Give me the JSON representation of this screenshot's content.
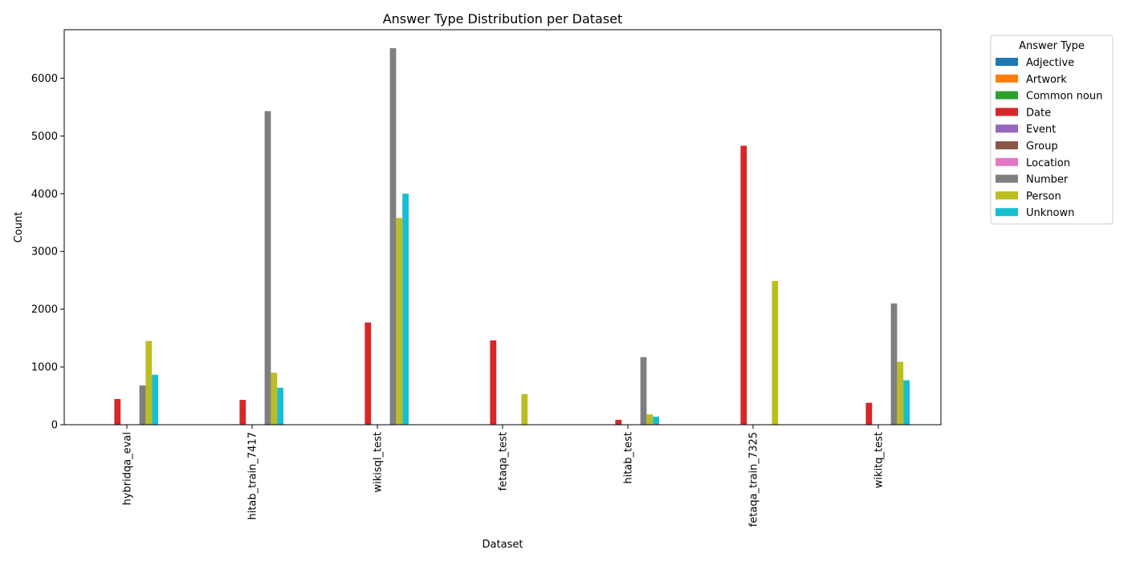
{
  "chart_data": {
    "type": "bar",
    "title": "Answer Type Distribution per Dataset",
    "xlabel": "Dataset",
    "ylabel": "Count",
    "ylim": [
      0,
      6840
    ],
    "yticks": [
      0,
      1000,
      2000,
      3000,
      4000,
      5000,
      6000
    ],
    "grid": false,
    "legend_title": "Answer Type",
    "legend_position": "outside-top-right",
    "categories": [
      "hybridqa_eval",
      "hitab_train_7417",
      "wikisql_test",
      "fetaqa_test",
      "hitab_test",
      "fetaqa_train_7325",
      "wikitq_test"
    ],
    "series": [
      {
        "name": "Adjective",
        "color": "#1f77b4",
        "values": [
          0,
          0,
          0,
          0,
          0,
          0,
          0
        ]
      },
      {
        "name": "Artwork",
        "color": "#ff7f0e",
        "values": [
          0,
          0,
          0,
          0,
          0,
          0,
          0
        ]
      },
      {
        "name": "Common noun",
        "color": "#2ca02c",
        "values": [
          0,
          0,
          0,
          0,
          0,
          0,
          0
        ]
      },
      {
        "name": "Date",
        "color": "#d62728",
        "values": [
          445,
          430,
          1770,
          1460,
          85,
          4830,
          380
        ]
      },
      {
        "name": "Event",
        "color": "#9467bd",
        "values": [
          0,
          0,
          0,
          0,
          0,
          0,
          0
        ]
      },
      {
        "name": "Group",
        "color": "#8c564b",
        "values": [
          0,
          0,
          0,
          0,
          0,
          0,
          0
        ]
      },
      {
        "name": "Location",
        "color": "#e377c2",
        "values": [
          0,
          0,
          0,
          0,
          0,
          0,
          0
        ]
      },
      {
        "name": "Number",
        "color": "#7f7f7f",
        "values": [
          680,
          5430,
          6520,
          0,
          1170,
          0,
          2100
        ]
      },
      {
        "name": "Person",
        "color": "#bcbd22",
        "values": [
          1450,
          900,
          3580,
          530,
          180,
          2490,
          1090
        ]
      },
      {
        "name": "Unknown",
        "color": "#17becf",
        "values": [
          865,
          640,
          4000,
          0,
          140,
          0,
          770
        ]
      }
    ]
  }
}
